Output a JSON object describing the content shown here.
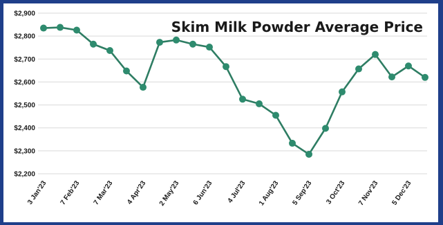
{
  "chart_data": {
    "type": "line",
    "title": "Skim Milk Powder Average Price",
    "xlabel": "",
    "ylabel": "",
    "ylim": [
      2200,
      2900
    ],
    "yticks": [
      2200,
      2300,
      2400,
      2500,
      2600,
      2700,
      2800,
      2900
    ],
    "ytick_labels": [
      "$2,200",
      "$2,300",
      "$2,400",
      "$2,500",
      "$2,600",
      "$2,700",
      "$2,800",
      "$2,900"
    ],
    "x_tick_labels": [
      "3 Jan'23",
      "7 Feb'23",
      "7 Mar'23",
      "4 Apr'23",
      "2 May'23",
      "6 Jun'23",
      "4 Jul'23",
      "1 Aug'23",
      "5 Sep'23",
      "3 Oct'23",
      "7 Nov'23",
      "5 Dec'23"
    ],
    "x_tick_every": 2,
    "grid": true,
    "legend": "none",
    "colors": {
      "line": "#2e7d63",
      "marker": "#2e8b6e",
      "grid": "#d9d9d9",
      "frame": "#1f3f8a"
    },
    "series": [
      {
        "values": [
          2835,
          2838,
          2826,
          2765,
          2737,
          2648,
          2577,
          2773,
          2783,
          2765,
          2752,
          2667,
          2525,
          2505,
          2455,
          2333,
          2285,
          2398,
          2557,
          2657,
          2720,
          2622,
          2670,
          2620
        ]
      }
    ]
  }
}
